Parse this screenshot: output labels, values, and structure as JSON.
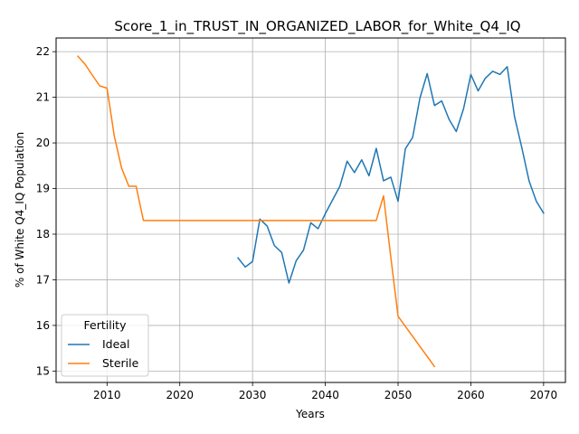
{
  "chart_data": {
    "type": "line",
    "title": "Score_1_in_TRUST_IN_ORGANIZED_LABOR_for_White_Q4_IQ",
    "xlabel": "Years",
    "ylabel": "% of White Q4_IQ Population",
    "xlim": [
      2003,
      2073
    ],
    "ylim": [
      14.75,
      22.3
    ],
    "xticks": [
      2010,
      2020,
      2030,
      2040,
      2050,
      2060,
      2070
    ],
    "yticks": [
      15,
      16,
      17,
      18,
      19,
      20,
      21,
      22
    ],
    "grid": true,
    "legend": {
      "title": "Fertility",
      "placement": "lower-left"
    },
    "series": [
      {
        "name": "Ideal",
        "color": "#1f77b4",
        "x": [
          2028,
          2029,
          2030,
          2031,
          2032,
          2033,
          2034,
          2035,
          2036,
          2037,
          2038,
          2039,
          2040,
          2041,
          2042,
          2043,
          2044,
          2045,
          2046,
          2047,
          2048,
          2049,
          2050,
          2051,
          2052,
          2053,
          2054,
          2055,
          2056,
          2057,
          2058,
          2059,
          2060,
          2061,
          2062,
          2063,
          2064,
          2065,
          2066,
          2067,
          2068,
          2069,
          2070
        ],
        "y": [
          17.48,
          17.28,
          17.4,
          18.33,
          18.18,
          17.75,
          17.6,
          16.93,
          17.42,
          17.65,
          18.25,
          18.12,
          18.45,
          18.75,
          19.05,
          19.6,
          19.35,
          19.63,
          19.28,
          19.88,
          19.17,
          19.25,
          18.72,
          19.87,
          20.12,
          20.98,
          21.52,
          20.82,
          20.92,
          20.52,
          20.25,
          20.75,
          21.5,
          21.14,
          21.42,
          21.57,
          21.5,
          21.67,
          20.58,
          19.9,
          19.17,
          18.72,
          18.46
        ]
      },
      {
        "name": "Sterile",
        "color": "#ff7f0e",
        "x": [
          2006,
          2007,
          2008,
          2009,
          2010,
          2011,
          2012,
          2013,
          2014,
          2015,
          2016,
          2017,
          2018,
          2019,
          2020,
          2021,
          2022,
          2023,
          2024,
          2025,
          2026,
          2027,
          2028,
          2029,
          2030,
          2031,
          2032,
          2033,
          2034,
          2035,
          2036,
          2037,
          2038,
          2039,
          2040,
          2041,
          2042,
          2043,
          2044,
          2045,
          2046,
          2047,
          2048,
          2049,
          2050,
          2051,
          2052,
          2053,
          2054,
          2055
        ],
        "y": [
          21.9,
          21.72,
          21.48,
          21.25,
          21.2,
          20.15,
          19.45,
          19.05,
          19.05,
          18.3,
          18.3,
          18.3,
          18.3,
          18.3,
          18.3,
          18.3,
          18.3,
          18.3,
          18.3,
          18.3,
          18.3,
          18.3,
          18.3,
          18.3,
          18.3,
          18.3,
          18.3,
          18.3,
          18.3,
          18.3,
          18.3,
          18.3,
          18.3,
          18.3,
          18.3,
          18.3,
          18.3,
          18.3,
          18.3,
          18.3,
          18.3,
          18.3,
          18.84,
          17.5,
          16.2,
          15.98,
          15.76,
          15.54,
          15.32,
          15.1
        ]
      }
    ]
  }
}
